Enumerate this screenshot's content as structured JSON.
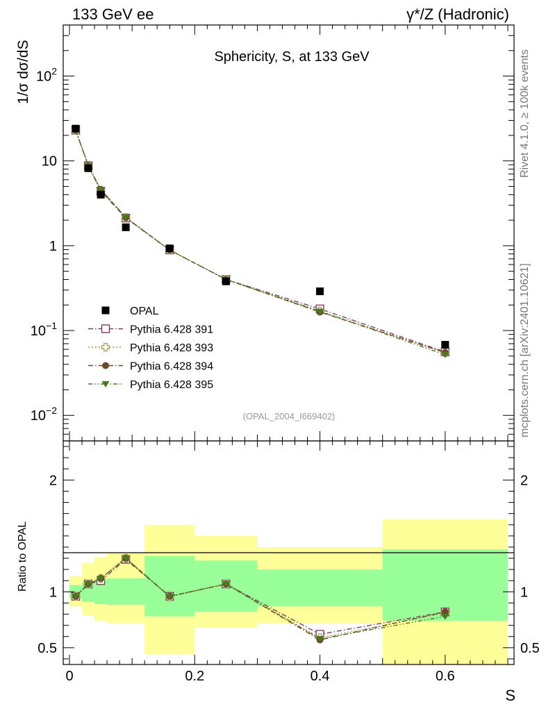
{
  "header": {
    "left": "133 GeV ee",
    "right": "γ*/Z (Hadronic)"
  },
  "side": {
    "rivet": "Rivet 4.1.0, ≥ 100k events",
    "site": "mcplots.cern.ch [arXiv:2401.10621]"
  },
  "chart_data": [
    {
      "type": "scatter",
      "title": "Sphericity, S, at 133 GeV",
      "ylabel": "1/σ  dσ/dS",
      "xlabel": "S",
      "yscale": "log",
      "ylim": [
        0.005,
        400
      ],
      "xlim": [
        -0.01,
        0.71
      ],
      "yticks": [
        "10^-2",
        "10^-1",
        "1",
        "10",
        "10^2"
      ],
      "xticks": [
        "0",
        "0.2",
        "0.4",
        "0.6"
      ],
      "watermark": "(OPAL_2004_I669402)",
      "x": [
        0.01,
        0.03,
        0.05,
        0.09,
        0.16,
        0.25,
        0.4,
        0.6
      ],
      "data": {
        "name": "OPAL",
        "color": "#000000",
        "values": [
          24.0,
          8.2,
          4.0,
          1.65,
          0.93,
          0.38,
          0.29,
          0.068
        ]
      },
      "series": [
        {
          "name": "Pythia 6.428 391",
          "color": "#7b3f63",
          "marker": "open-square",
          "dash": "dashdot",
          "values": [
            23.0,
            8.8,
            4.4,
            2.12,
            0.89,
            0.4,
            0.18,
            0.056
          ]
        },
        {
          "name": "Pythia 6.428 393",
          "color": "#a79a55",
          "marker": "open-cross",
          "dash": "dot",
          "values": [
            23.0,
            8.7,
            4.5,
            2.15,
            0.89,
            0.4,
            0.17,
            0.055
          ]
        },
        {
          "name": "Pythia 6.428 394",
          "color": "#6b4a2b",
          "marker": "filled-circle",
          "dash": "dashdot",
          "values": [
            23.0,
            8.8,
            4.6,
            2.15,
            0.89,
            0.4,
            0.165,
            0.055
          ]
        },
        {
          "name": "Pythia 6.428 395",
          "color": "#4a7a1e",
          "marker": "filled-triangle",
          "dash": "dashdotdot",
          "values": [
            23.0,
            8.8,
            4.6,
            2.15,
            0.89,
            0.4,
            0.168,
            0.052
          ]
        }
      ]
    },
    {
      "type": "line",
      "ylabel": "Ratio to OPAL",
      "xlabel": "S",
      "ylim": [
        0.35,
        2.35
      ],
      "xlim": [
        -0.01,
        0.71
      ],
      "yticks": [
        "0.5",
        "1",
        "2"
      ],
      "bands": {
        "edges": [
          0.0,
          0.02,
          0.04,
          0.06,
          0.12,
          0.2,
          0.3,
          0.5,
          0.7
        ],
        "inner": [
          [
            0.94,
            1.06
          ],
          [
            0.91,
            1.09
          ],
          [
            0.89,
            1.11
          ],
          [
            0.885,
            1.12
          ],
          [
            0.78,
            1.32
          ],
          [
            0.82,
            1.28
          ],
          [
            0.87,
            1.2
          ],
          [
            0.74,
            1.38
          ]
        ],
        "outer": [
          [
            0.87,
            1.14
          ],
          [
            0.79,
            1.26
          ],
          [
            0.74,
            1.31
          ],
          [
            0.72,
            1.35
          ],
          [
            0.44,
            1.6
          ],
          [
            0.68,
            1.5
          ],
          [
            0.72,
            1.4
          ],
          [
            0.3,
            1.65
          ]
        ]
      },
      "x": [
        0.01,
        0.03,
        0.05,
        0.09,
        0.16,
        0.25,
        0.4,
        0.6
      ],
      "series": [
        {
          "name": "Pythia 6.428 391",
          "values": [
            0.96,
            1.07,
            1.1,
            1.29,
            0.96,
            1.07,
            0.62,
            0.82
          ]
        },
        {
          "name": "Pythia 6.428 393",
          "values": [
            0.96,
            1.07,
            1.12,
            1.3,
            0.955,
            1.07,
            0.59,
            0.81
          ]
        },
        {
          "name": "Pythia 6.428 394",
          "values": [
            0.96,
            1.07,
            1.12,
            1.3,
            0.96,
            1.07,
            0.57,
            0.82
          ]
        },
        {
          "name": "Pythia 6.428 395",
          "values": [
            0.96,
            1.07,
            1.12,
            1.3,
            0.96,
            1.07,
            0.58,
            0.78
          ]
        }
      ]
    }
  ]
}
